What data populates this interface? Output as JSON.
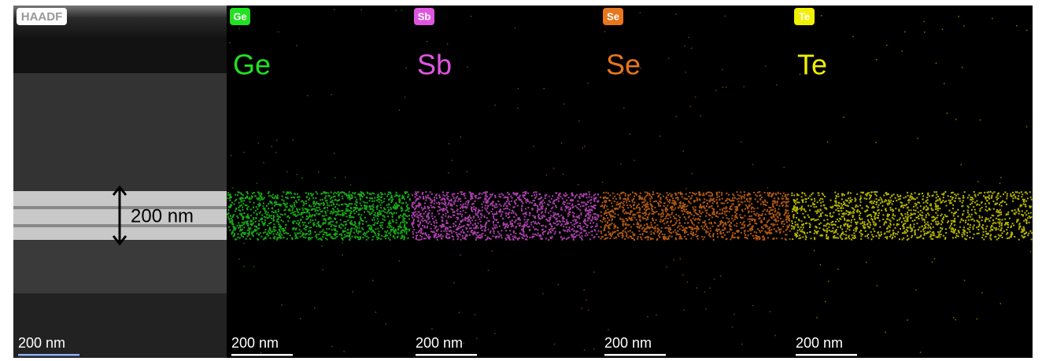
{
  "panels": [
    {
      "badge": "HAADF",
      "scale_bar": "200 nm",
      "annotation": "200 nm"
    },
    {
      "badge": "Ge",
      "label": "Ge",
      "scale_bar": "200 nm",
      "color": "#22e022"
    },
    {
      "badge": "Sb",
      "label": "Sb",
      "scale_bar": "200 nm",
      "color": "#e055e0"
    },
    {
      "badge": "Se",
      "label": "Se",
      "scale_bar": "200 nm",
      "color": "#e8761c"
    },
    {
      "badge": "Te",
      "label": "Te",
      "scale_bar": "200 nm",
      "color": "#f0f000"
    }
  ]
}
